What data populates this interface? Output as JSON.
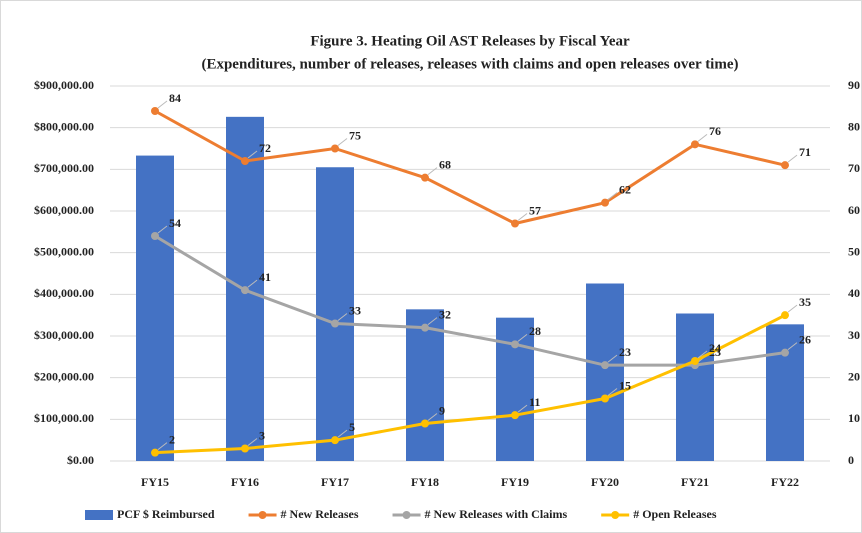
{
  "chart_data": {
    "type": "bar-line",
    "title": "Figure 3. Heating Oil AST Releases by Fiscal Year",
    "subtitle": "(Expenditures, number of releases,  releases with claims and open releases over time)",
    "categories": [
      "FY15",
      "FY16",
      "FY17",
      "FY18",
      "FY19",
      "FY20",
      "FY21",
      "FY22"
    ],
    "series": [
      {
        "name": "PCF $ Reimbursed",
        "color": "#4472c4",
        "axis": "y",
        "kind": "bar",
        "values": [
          733000,
          826000,
          705000,
          364000,
          344000,
          426000,
          354000,
          328000
        ]
      },
      {
        "name": "# New Releases",
        "color": "#ed7d31",
        "axis": "y2",
        "kind": "line",
        "values": [
          84,
          72,
          75,
          68,
          57,
          62,
          76,
          71
        ]
      },
      {
        "name": "# New Releases with Claims",
        "color": "#a5a5a5",
        "axis": "y2",
        "kind": "line",
        "values": [
          54,
          41,
          33,
          32,
          28,
          23,
          23,
          26
        ]
      },
      {
        "name": "# Open Releases",
        "color": "#ffc000",
        "axis": "y2",
        "kind": "line",
        "values": [
          2,
          3,
          5,
          9,
          11,
          15,
          24,
          35
        ]
      }
    ],
    "ylim": [
      0,
      900000
    ],
    "yticks": [
      {
        "value": 0,
        "label": "$0.00"
      },
      {
        "value": 100000,
        "label": "$100,000.00"
      },
      {
        "value": 200000,
        "label": "$200,000.00"
      },
      {
        "value": 300000,
        "label": "$300,000.00"
      },
      {
        "value": 400000,
        "label": "$400,000.00"
      },
      {
        "value": 500000,
        "label": "$500,000.00"
      },
      {
        "value": 600000,
        "label": "$600,000.00"
      },
      {
        "value": 700000,
        "label": "$700,000.00"
      },
      {
        "value": 800000,
        "label": "$800,000.00"
      },
      {
        "value": 900000,
        "label": "$900,000.00"
      }
    ],
    "y2lim": [
      0,
      90
    ],
    "y2ticks": [
      0,
      10,
      20,
      30,
      40,
      50,
      60,
      70,
      80,
      90
    ],
    "grid": true,
    "legend": "bottom"
  }
}
